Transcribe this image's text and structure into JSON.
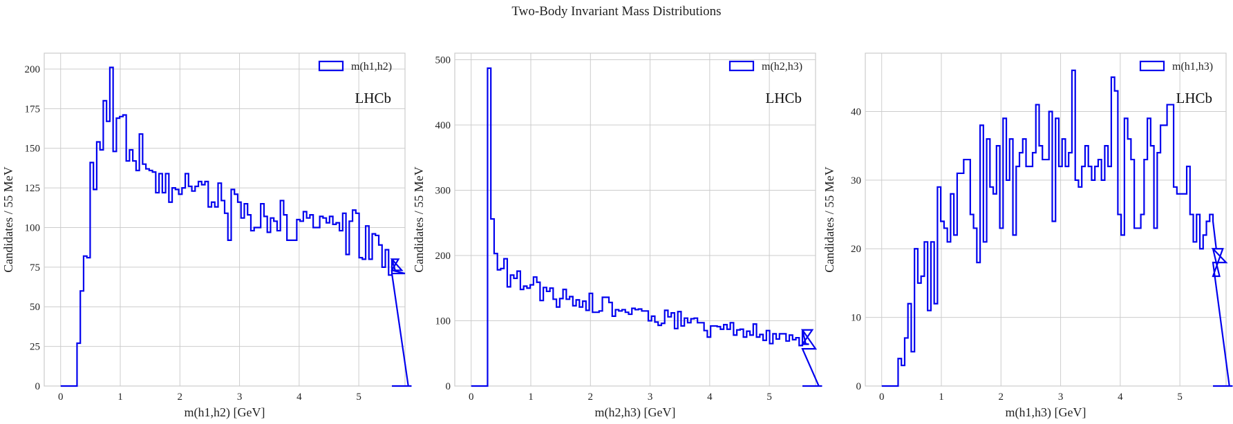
{
  "figure": {
    "title": "Two-Body Invariant Mass Distributions"
  },
  "colors": {
    "series": "#0000ee",
    "grid": "#cccccc",
    "frame": "#cccccc",
    "text": "#222222"
  },
  "chart_data": [
    {
      "type": "histogram",
      "title": "",
      "xlabel": "m(h1,h2) [GeV]",
      "ylabel": "Candidates / 55 MeV",
      "xlim": [
        -0.275,
        5.775
      ],
      "ylim": [
        0,
        210
      ],
      "xticks": [
        0,
        1,
        2,
        3,
        4,
        5
      ],
      "yticks": [
        0,
        25,
        50,
        75,
        100,
        125,
        150,
        175,
        200
      ],
      "legend": {
        "label": "m(h1,h2)",
        "position": "top-right"
      },
      "annotation": "LHCb",
      "grid": true,
      "bin_start": 0,
      "bin_width": 0.055,
      "counts": [
        0,
        0,
        0,
        0,
        0,
        27,
        60,
        82,
        81,
        141,
        124,
        154,
        149,
        180,
        167,
        201,
        148,
        169,
        170,
        171,
        142,
        149,
        142,
        136,
        159,
        140,
        137,
        136,
        135,
        122,
        134,
        122,
        134,
        116,
        125,
        124,
        121,
        125,
        134,
        126,
        123,
        126,
        129,
        127,
        129,
        113,
        116,
        113,
        128,
        117,
        109,
        92,
        124,
        121,
        116,
        106,
        115,
        108,
        98,
        100,
        100,
        115,
        107,
        97,
        106,
        104,
        98,
        117,
        108,
        92,
        92,
        92,
        105,
        104,
        110,
        106,
        108,
        100,
        100,
        107,
        106,
        103,
        107,
        102,
        103,
        98,
        109,
        83,
        104,
        111,
        109,
        81,
        80,
        101,
        80,
        96,
        95,
        89,
        75,
        86,
        70,
        80,
        73,
        80,
        73,
        71,
        0
      ],
      "bin_end": 5.5
    },
    {
      "type": "histogram",
      "title": "",
      "xlabel": "m(h2,h3) [GeV]",
      "ylabel": "Candidates / 55 MeV",
      "xlim": [
        -0.275,
        5.775
      ],
      "ylim": [
        0,
        510
      ],
      "xticks": [
        0,
        1,
        2,
        3,
        4,
        5
      ],
      "yticks": [
        0,
        100,
        200,
        300,
        400,
        500
      ],
      "legend": {
        "label": "m(h2,h3)",
        "position": "top-right"
      },
      "annotation": "LHCb",
      "grid": true,
      "bin_start": 0,
      "bin_width": 0.055,
      "counts": [
        0,
        0,
        0,
        0,
        0,
        487,
        256,
        203,
        178,
        180,
        195,
        152,
        170,
        165,
        176,
        148,
        153,
        150,
        155,
        167,
        159,
        131,
        151,
        145,
        150,
        133,
        121,
        134,
        148,
        133,
        137,
        123,
        132,
        121,
        130,
        116,
        142,
        113,
        113,
        115,
        136,
        136,
        128,
        107,
        117,
        115,
        117,
        113,
        110,
        119,
        117,
        118,
        115,
        115,
        100,
        107,
        98,
        93,
        96,
        116,
        106,
        112,
        88,
        114,
        92,
        104,
        97,
        103,
        104,
        97,
        97,
        85,
        75,
        92,
        92,
        91,
        87,
        94,
        87,
        97,
        78,
        86,
        87,
        75,
        84,
        78,
        95,
        75,
        79,
        70,
        85,
        65,
        80,
        72,
        80,
        80,
        69,
        78,
        71,
        74,
        62,
        86,
        65,
        64,
        86,
        57,
        0
      ],
      "bin_end": 5.5
    },
    {
      "type": "histogram",
      "title": "",
      "xlabel": "m(h1,h3) [GeV]",
      "ylabel": "Candidates / 55 MeV",
      "xlim": [
        -0.275,
        5.775
      ],
      "ylim": [
        0,
        48.5
      ],
      "xticks": [
        0,
        1,
        2,
        3,
        4,
        5
      ],
      "yticks": [
        0,
        10,
        20,
        30,
        40
      ],
      "legend": {
        "label": "m(h1,h3)",
        "position": "top-right"
      },
      "annotation": "LHCb",
      "grid": true,
      "bin_start": 0,
      "bin_width": 0.055,
      "counts": [
        0,
        0,
        0,
        0,
        0,
        4,
        3,
        7,
        12,
        5,
        20,
        15,
        16,
        21,
        11,
        21,
        12,
        29,
        24,
        23,
        21,
        28,
        22,
        31,
        31,
        33,
        33,
        25,
        23,
        18,
        38,
        21,
        36,
        29,
        28,
        35,
        23,
        39,
        30,
        36,
        22,
        32,
        34,
        36,
        32,
        32,
        34,
        41,
        35,
        33,
        33,
        40,
        24,
        39,
        32,
        36,
        32,
        34,
        46,
        30,
        29,
        32,
        35,
        32,
        30,
        32,
        33,
        30,
        35,
        32,
        45,
        43,
        25,
        22,
        39,
        36,
        33,
        23,
        23,
        25,
        33,
        39,
        35,
        23,
        34,
        38,
        38,
        41,
        41,
        29,
        28,
        28,
        28,
        32,
        25,
        21,
        25,
        20,
        22,
        24,
        25,
        24,
        20,
        16,
        20,
        18,
        0
      ],
      "bin_end": 5.5
    }
  ]
}
